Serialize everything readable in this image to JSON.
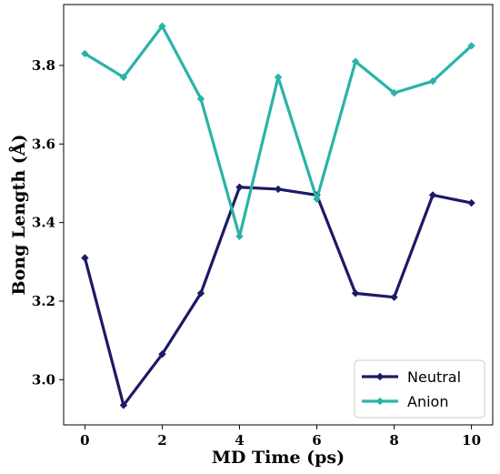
{
  "chart_data": {
    "type": "line",
    "title": "",
    "xlabel": "MD Time (ps)",
    "ylabel": "Bong Length (Å)",
    "xlim": [
      -0.55,
      10.55
    ],
    "ylim": [
      2.885,
      3.955
    ],
    "xticks": [
      0,
      2,
      4,
      6,
      8,
      10
    ],
    "yticks": [
      3.0,
      3.2,
      3.4,
      3.6,
      3.8
    ],
    "xtick_labels": [
      "0",
      "2",
      "4",
      "6",
      "8",
      "10"
    ],
    "ytick_labels": [
      "3.0",
      "3.2",
      "3.4",
      "3.6",
      "3.8"
    ],
    "grid": false,
    "legend_position": "lower-right",
    "x": [
      0,
      1,
      2,
      3,
      4,
      5,
      6,
      7,
      8,
      9,
      10
    ],
    "series": [
      {
        "name": "Neutral",
        "color": "#1c1a66",
        "marker": "diamond",
        "values": [
          3.31,
          2.935,
          3.065,
          3.22,
          3.49,
          3.485,
          3.47,
          3.22,
          3.21,
          3.47,
          3.45
        ]
      },
      {
        "name": "Anion",
        "color": "#2ab3a8",
        "marker": "diamond",
        "values": [
          3.83,
          3.77,
          3.9,
          3.715,
          3.365,
          3.77,
          3.46,
          3.81,
          3.73,
          3.76,
          3.85
        ]
      }
    ]
  }
}
